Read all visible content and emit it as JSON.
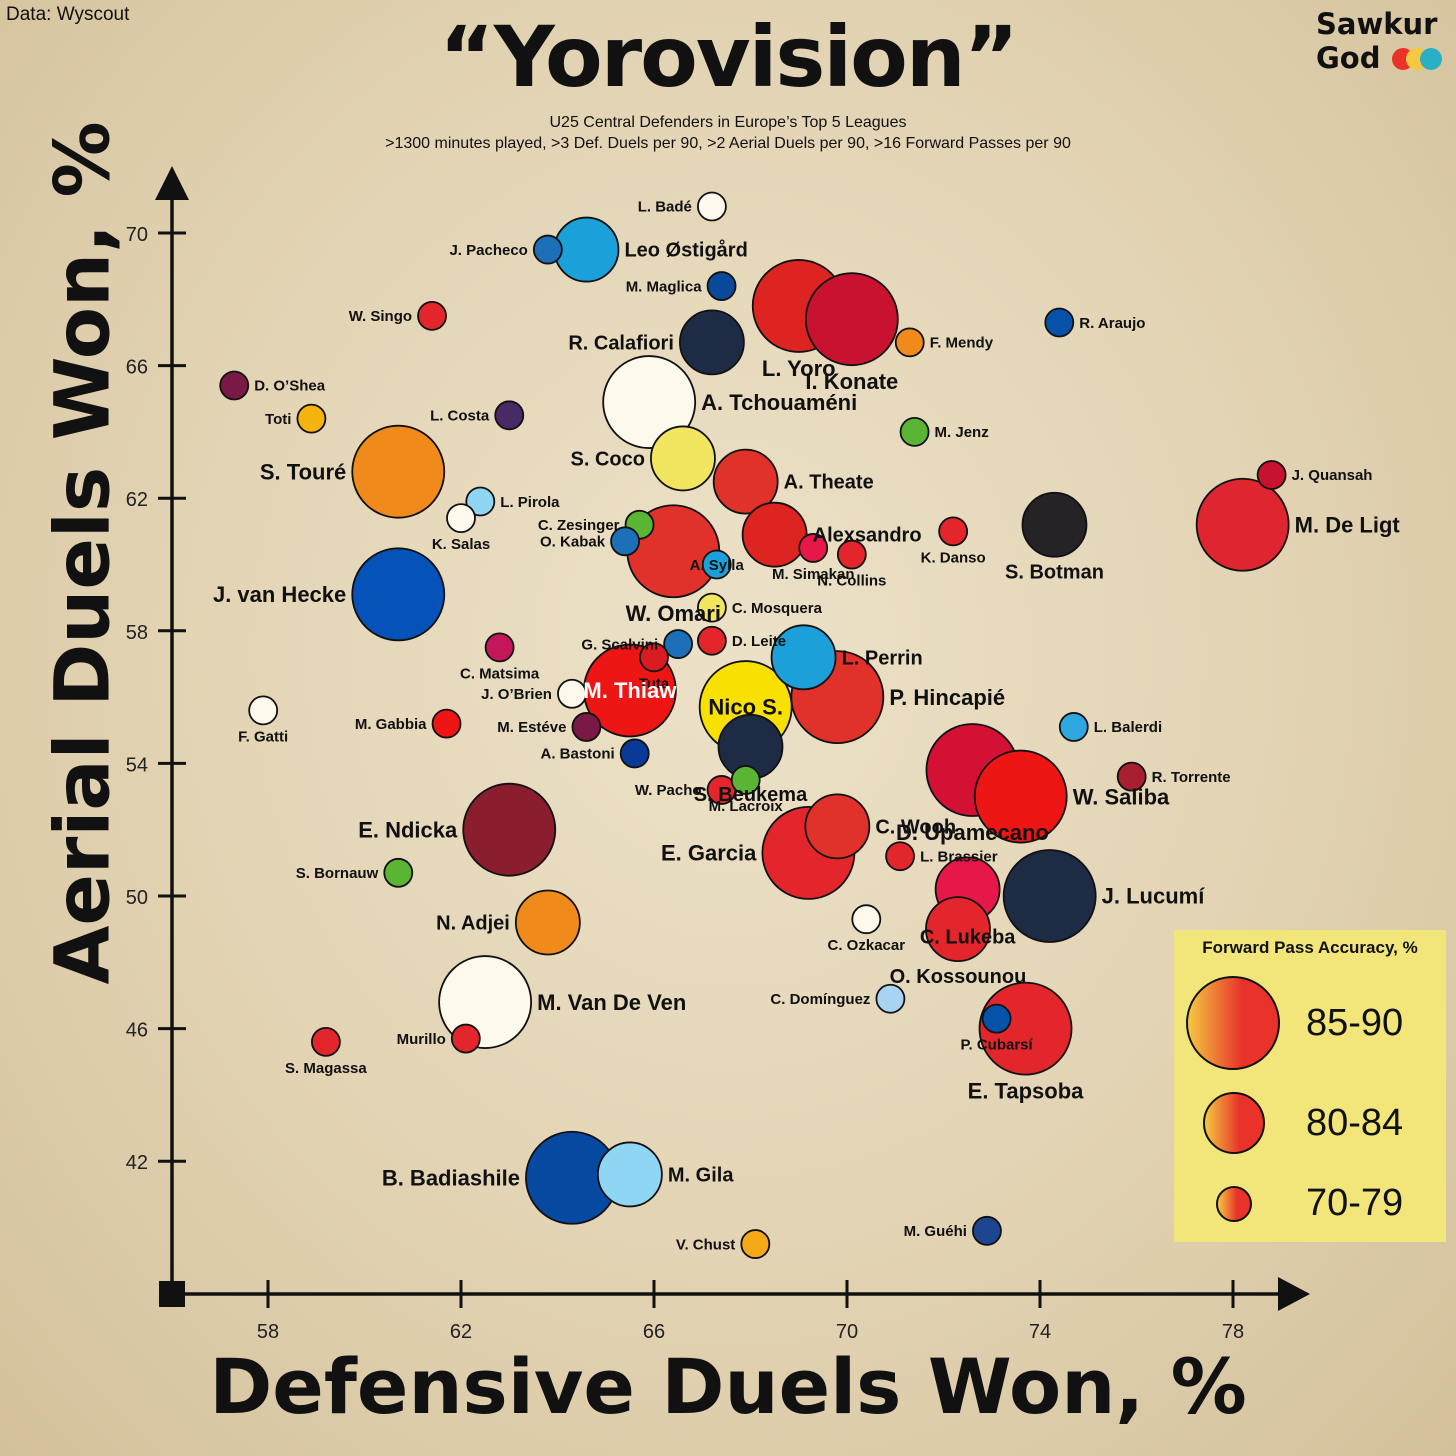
{
  "header": {
    "source": "Data: Wyscout",
    "title": "“Yorovision”",
    "subtitle1": "U25 Central Defenders in Europe’s Top 5 Leagues",
    "subtitle2": ">1300 minutes played, >3 Def. Duels per 90, >2 Aerial Duels per 90, >16 Forward Passes per 90",
    "brand_line1": "Sawkur",
    "brand_line2": "God",
    "brand_dot_colors": [
      "#e8322a",
      "#f5c842",
      "#2ab0c4"
    ]
  },
  "legend": {
    "title": "Forward Pass Accuracy, %",
    "items": [
      {
        "label": "85-90"
      },
      {
        "label": "80-84"
      },
      {
        "label": "70-79"
      }
    ]
  },
  "chart_data": {
    "type": "scatter",
    "title": "“Yorovision”",
    "xlabel": "Defensive Duels Won, %",
    "ylabel": "Aerial Duels Won, %",
    "xlim": [
      56,
      80
    ],
    "ylim": [
      37.5,
      72
    ],
    "xticks": [
      58,
      62,
      66,
      70,
      74,
      78
    ],
    "yticks": [
      42,
      46,
      50,
      54,
      58,
      62,
      66,
      70
    ],
    "size_legend": "Forward Pass Accuracy, %",
    "points": [
      {
        "name": "L. Badé",
        "x": 67.2,
        "y": 70.8,
        "acc": 71,
        "color": "#fdf9ec"
      },
      {
        "name": "J. Pacheco",
        "x": 63.8,
        "y": 69.5,
        "acc": 72,
        "color": "#1d6fb8"
      },
      {
        "name": "Leo Østigård",
        "x": 64.6,
        "y": 69.5,
        "acc": 82,
        "color": "#1ca0da"
      },
      {
        "name": "M. Maglica",
        "x": 67.4,
        "y": 68.4,
        "acc": 71,
        "color": "#0a4a9a"
      },
      {
        "name": "W. Singo",
        "x": 61.4,
        "y": 67.5,
        "acc": 78,
        "color": "#e3262b"
      },
      {
        "name": "R. Calafiori",
        "x": 67.2,
        "y": 66.7,
        "acc": 82,
        "color": "#1d2b45"
      },
      {
        "name": "L. Yoro",
        "x": 69.0,
        "y": 67.8,
        "acc": 88,
        "color": "#dd2420"
      },
      {
        "name": "I. Konate",
        "x": 70.1,
        "y": 67.4,
        "acc": 88,
        "color": "#c91230"
      },
      {
        "name": "F. Mendy",
        "x": 71.3,
        "y": 66.7,
        "acc": 71,
        "color": "#f08a1a"
      },
      {
        "name": "R. Araujo",
        "x": 74.4,
        "y": 67.3,
        "acc": 79,
        "color": "#0552a8"
      },
      {
        "name": "D. O’Shea",
        "x": 57.3,
        "y": 65.4,
        "acc": 71,
        "color": "#7a1846"
      },
      {
        "name": "Toti",
        "x": 58.9,
        "y": 64.4,
        "acc": 71,
        "color": "#f5b310"
      },
      {
        "name": "L. Costa",
        "x": 63.0,
        "y": 64.5,
        "acc": 71,
        "color": "#4a2a66"
      },
      {
        "name": "A. Tchouaméni",
        "x": 65.9,
        "y": 64.9,
        "acc": 90,
        "color": "#fdf9ec"
      },
      {
        "name": "M. Jenz",
        "x": 71.4,
        "y": 64.0,
        "acc": 79,
        "color": "#5bb534"
      },
      {
        "name": "S. Touré",
        "x": 60.7,
        "y": 62.8,
        "acc": 88,
        "color": "#f08a1a"
      },
      {
        "name": "S. Coco",
        "x": 66.6,
        "y": 63.2,
        "acc": 80,
        "color": "#f2e660"
      },
      {
        "name": "A. Theate",
        "x": 67.9,
        "y": 62.5,
        "acc": 80,
        "color": "#e0322a"
      },
      {
        "name": "J. Quansah",
        "x": 78.8,
        "y": 62.7,
        "acc": 79,
        "color": "#c91230"
      },
      {
        "name": "M. De Ligt",
        "x": 78.2,
        "y": 61.2,
        "acc": 88,
        "color": "#df2530"
      },
      {
        "name": "L. Pirola",
        "x": 62.4,
        "y": 61.9,
        "acc": 72,
        "color": "#8fd6f5"
      },
      {
        "name": "K. Salas",
        "x": 62.0,
        "y": 61.4,
        "acc": 71,
        "color": "#fdf9ec"
      },
      {
        "name": "C. Zesinger",
        "x": 65.7,
        "y": 61.2,
        "acc": 71,
        "color": "#5bb534"
      },
      {
        "name": "O. Kabak",
        "x": 65.4,
        "y": 60.7,
        "acc": 72,
        "color": "#1d6fb8"
      },
      {
        "name": "W. Omari",
        "x": 66.4,
        "y": 60.4,
        "acc": 88,
        "color": "#e0322a"
      },
      {
        "name": "A. Sylla",
        "x": 67.3,
        "y": 60.0,
        "acc": 79,
        "color": "#1ca0da"
      },
      {
        "name": "Alexsandro",
        "x": 68.5,
        "y": 60.9,
        "acc": 80,
        "color": "#dd2420"
      },
      {
        "name": "M. Simakan",
        "x": 69.3,
        "y": 60.5,
        "acc": 71,
        "color": "#e8174a"
      },
      {
        "name": "N. Collins",
        "x": 70.1,
        "y": 60.3,
        "acc": 71,
        "color": "#e3262b"
      },
      {
        "name": "K. Danso",
        "x": 72.2,
        "y": 61.0,
        "acc": 71,
        "color": "#e3262b"
      },
      {
        "name": "S. Botman",
        "x": 74.3,
        "y": 61.2,
        "acc": 80,
        "color": "#252325"
      },
      {
        "name": "J. van Hecke",
        "x": 60.7,
        "y": 59.1,
        "acc": 88,
        "color": "#0552b8"
      },
      {
        "name": "C. Mosquera",
        "x": 67.2,
        "y": 58.7,
        "acc": 71,
        "color": "#f2e660"
      },
      {
        "name": "C. Matsima",
        "x": 62.8,
        "y": 57.5,
        "acc": 79,
        "color": "#c4175a"
      },
      {
        "name": "G. Scalvini",
        "x": 66.5,
        "y": 57.6,
        "acc": 71,
        "color": "#1d6fb8"
      },
      {
        "name": "D. Leite",
        "x": 67.2,
        "y": 57.7,
        "acc": 71,
        "color": "#e3262b"
      },
      {
        "name": "Tuta",
        "x": 66.0,
        "y": 57.2,
        "acc": 71,
        "color": "#d91c22"
      },
      {
        "name": "M. Thiaw",
        "x": 65.5,
        "y": 56.2,
        "acc": 88,
        "color": "#ee1515"
      },
      {
        "name": "L. Perrin",
        "x": 69.1,
        "y": 57.2,
        "acc": 80,
        "color": "#1ca0da"
      },
      {
        "name": "P. Hincapié",
        "x": 69.8,
        "y": 56.0,
        "acc": 90,
        "color": "#e0322a"
      },
      {
        "name": "Nico S.",
        "x": 67.9,
        "y": 55.7,
        "acc": 88,
        "color": "#f8e000"
      },
      {
        "name": "J. O’Brien",
        "x": 64.3,
        "y": 56.1,
        "acc": 71,
        "color": "#fdf9ec"
      },
      {
        "name": "F. Gatti",
        "x": 57.9,
        "y": 55.6,
        "acc": 71,
        "color": "#fdf9ec"
      },
      {
        "name": "M. Gabbia",
        "x": 61.7,
        "y": 55.2,
        "acc": 79,
        "color": "#ee1515"
      },
      {
        "name": "M. Estéve",
        "x": 64.6,
        "y": 55.1,
        "acc": 71,
        "color": "#7a1846"
      },
      {
        "name": "L. Balerdi",
        "x": 74.7,
        "y": 55.1,
        "acc": 71,
        "color": "#2ea6df"
      },
      {
        "name": "A. Bastoni",
        "x": 65.6,
        "y": 54.3,
        "acc": 79,
        "color": "#0a3a98"
      },
      {
        "name": "S. Beukema",
        "x": 68.0,
        "y": 54.5,
        "acc": 80,
        "color": "#1d2b45"
      },
      {
        "name": "D. Upamecano",
        "x": 72.6,
        "y": 53.8,
        "acc": 88,
        "color": "#d41035"
      },
      {
        "name": "W. Saliba",
        "x": 73.6,
        "y": 53.0,
        "acc": 88,
        "color": "#ee1515"
      },
      {
        "name": "R. Torrente",
        "x": 75.9,
        "y": 53.6,
        "acc": 71,
        "color": "#a82030"
      },
      {
        "name": "W. Pacho",
        "x": 67.4,
        "y": 53.2,
        "acc": 71,
        "color": "#e3262b"
      },
      {
        "name": "M. Lacroix",
        "x": 67.9,
        "y": 53.5,
        "acc": 71,
        "color": "#5bb534"
      },
      {
        "name": "E. Ndicka",
        "x": 63.0,
        "y": 52.0,
        "acc": 88,
        "color": "#8a1e2e"
      },
      {
        "name": "C. Wooh",
        "x": 69.8,
        "y": 52.1,
        "acc": 80,
        "color": "#e0322a"
      },
      {
        "name": "E. Garcia",
        "x": 69.2,
        "y": 51.3,
        "acc": 88,
        "color": "#e3262b"
      },
      {
        "name": "L. Brassier",
        "x": 71.1,
        "y": 51.2,
        "acc": 71,
        "color": "#e3262b"
      },
      {
        "name": "S. Bornauw",
        "x": 60.7,
        "y": 50.7,
        "acc": 71,
        "color": "#5bb534"
      },
      {
        "name": "C. Lukeba",
        "x": 72.5,
        "y": 50.2,
        "acc": 80,
        "color": "#e8174a"
      },
      {
        "name": "J. Lucumí",
        "x": 74.2,
        "y": 50.0,
        "acc": 88,
        "color": "#1d2b45"
      },
      {
        "name": "N. Adjei",
        "x": 63.8,
        "y": 49.2,
        "acc": 80,
        "color": "#f08a1a"
      },
      {
        "name": "C. Ozkacar",
        "x": 70.4,
        "y": 49.3,
        "acc": 71,
        "color": "#fdf9ec"
      },
      {
        "name": "O. Kossounou",
        "x": 72.3,
        "y": 49.0,
        "acc": 80,
        "color": "#e3262b"
      },
      {
        "name": "M. Van De Ven",
        "x": 62.5,
        "y": 46.8,
        "acc": 90,
        "color": "#fdf9ec"
      },
      {
        "name": "C. Domínguez",
        "x": 70.9,
        "y": 46.9,
        "acc": 71,
        "color": "#a8d4f2"
      },
      {
        "name": "S. Magassa",
        "x": 59.2,
        "y": 45.6,
        "acc": 79,
        "color": "#e3262b"
      },
      {
        "name": "Murillo",
        "x": 62.1,
        "y": 45.7,
        "acc": 71,
        "color": "#e3262b"
      },
      {
        "name": "E. Tapsoba",
        "x": 73.7,
        "y": 46.0,
        "acc": 88,
        "color": "#e3262b"
      },
      {
        "name": "P. Cubarsí",
        "x": 73.1,
        "y": 46.3,
        "acc": 79,
        "color": "#0552a8"
      },
      {
        "name": "B. Badiashile",
        "x": 64.3,
        "y": 41.5,
        "acc": 88,
        "color": "#0549a0"
      },
      {
        "name": "M. Gila",
        "x": 65.5,
        "y": 41.6,
        "acc": 80,
        "color": "#8fd6f5"
      },
      {
        "name": "M. Guéhi",
        "x": 72.9,
        "y": 39.9,
        "acc": 71,
        "color": "#1d4590"
      },
      {
        "name": "V. Chust",
        "x": 68.1,
        "y": 39.5,
        "acc": 71,
        "color": "#f5a818"
      }
    ]
  }
}
